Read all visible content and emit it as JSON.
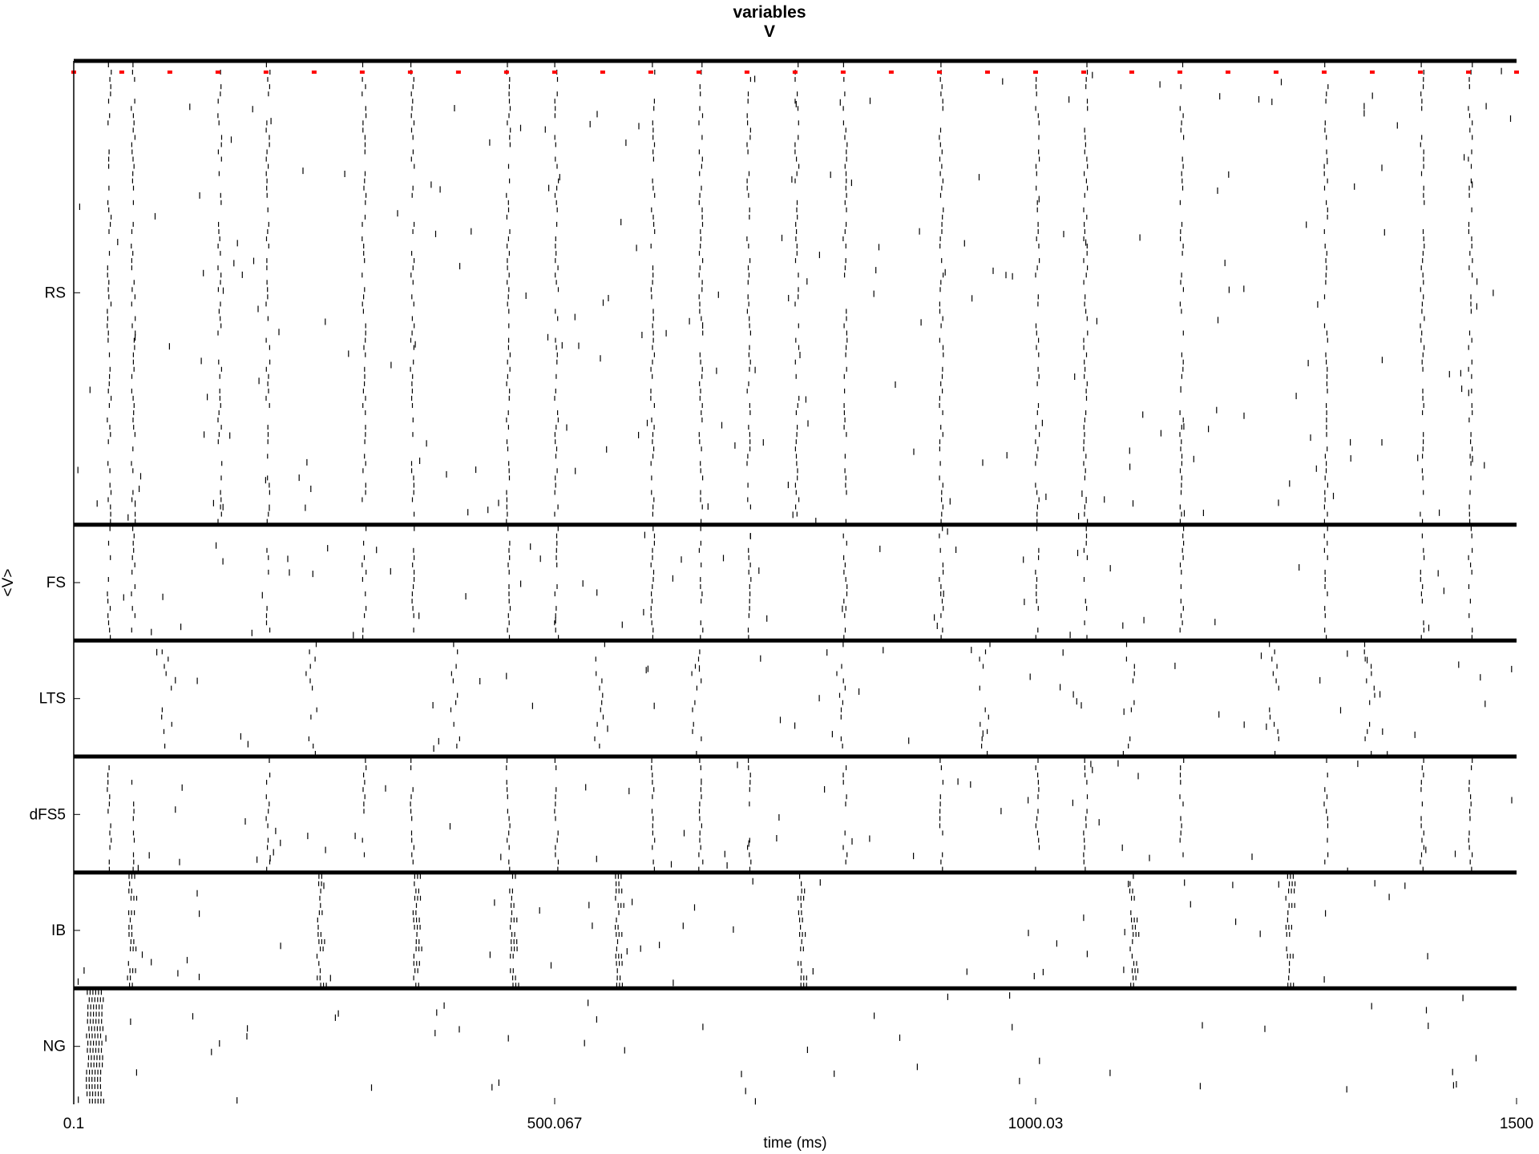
{
  "chart_data": {
    "type": "raster",
    "title_lines": [
      "variables",
      "V"
    ],
    "xlabel": "time (ms)",
    "ylabel": "<V>",
    "xlim": [
      0.1,
      1500
    ],
    "xticks": [
      "0.1",
      "500.067",
      "1000.03",
      "1500"
    ],
    "populations": [
      {
        "name": "RS",
        "relative_rows": 20
      },
      {
        "name": "FS",
        "relative_rows": 5
      },
      {
        "name": "LTS",
        "relative_rows": 5
      },
      {
        "name": "dFS5",
        "relative_rows": 5
      },
      {
        "name": "IB",
        "relative_rows": 5
      },
      {
        "name": "NG",
        "relative_rows": 5
      }
    ],
    "rhythm_period_ms": 50,
    "stimulus_marker_times_ms": [
      0.1,
      50,
      100,
      150,
      200,
      250,
      300,
      350,
      400,
      450,
      500,
      550,
      600,
      650,
      700,
      750,
      800,
      850,
      900,
      950,
      1000,
      1050,
      1100,
      1150,
      1200,
      1250,
      1300,
      1350,
      1400,
      1450,
      1500
    ],
    "population_volley_times_ms": {
      "RS": [
        37,
        62,
        152,
        202,
        302,
        352,
        452,
        502,
        602,
        652,
        702,
        752,
        802,
        902,
        1002,
        1052,
        1152,
        1302,
        1402,
        1452
      ],
      "FS": [
        37,
        62,
        202,
        302,
        352,
        452,
        502,
        602,
        652,
        702,
        802,
        902,
        1002,
        1052,
        1152,
        1302,
        1402,
        1452
      ],
      "LTS": [
        97,
        247,
        397,
        547,
        647,
        797,
        947,
        1097,
        1247,
        1347
      ],
      "dFS5": [
        37,
        62,
        202,
        302,
        352,
        452,
        502,
        602,
        652,
        702,
        802,
        902,
        1002,
        1052,
        1152,
        1302,
        1402,
        1452
      ],
      "IB": [
        58,
        255,
        355,
        455,
        565,
        755,
        1100,
        1262
      ],
      "NG": [
        15
      ]
    },
    "colors": {
      "spike": "#000000",
      "stimulus_marker": "#ff0000",
      "separator": "#000000"
    }
  }
}
